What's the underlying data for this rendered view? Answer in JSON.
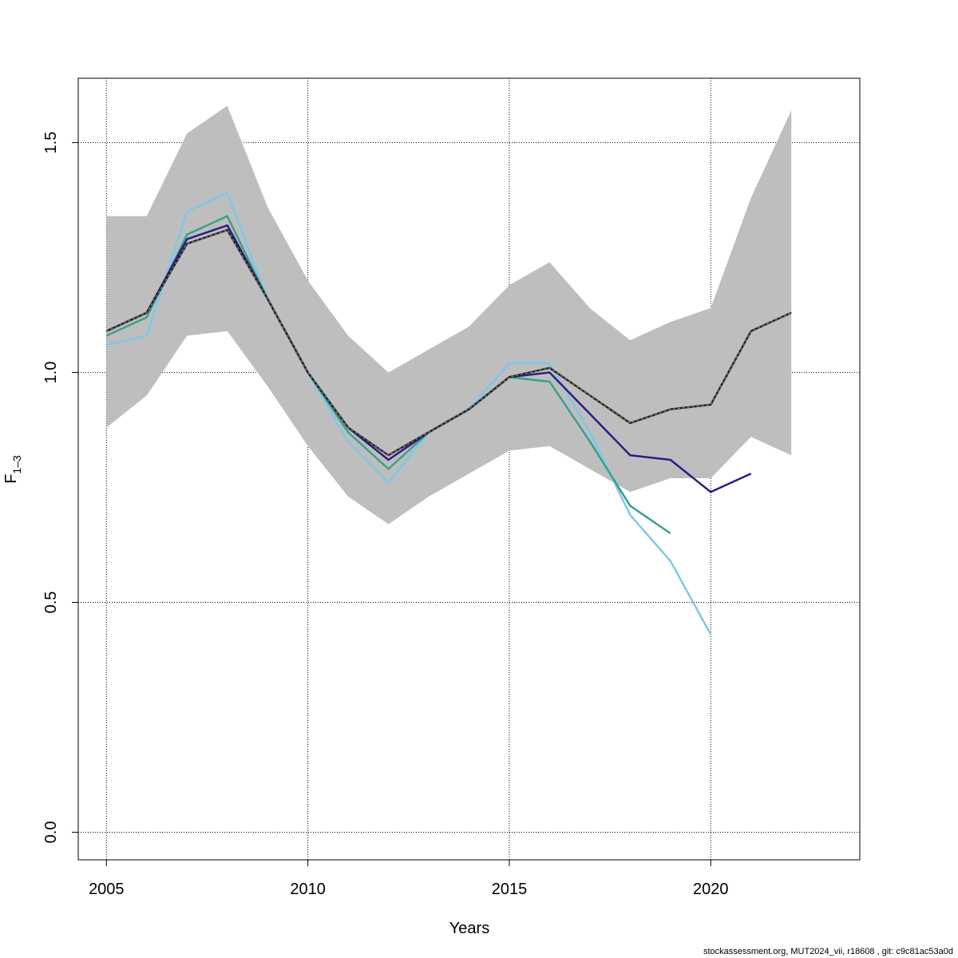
{
  "chart_data": {
    "type": "line",
    "xlabel": "Years",
    "ylabel_main": "F",
    "ylabel_sub": "1–3",
    "xlim": [
      2004.3,
      2023.7
    ],
    "ylim": [
      -0.06,
      1.64
    ],
    "x_ticks": [
      2005,
      2010,
      2015,
      2020
    ],
    "y_ticks": [
      0.0,
      0.5,
      1.0,
      1.5
    ],
    "x_tick_labels": [
      "2005",
      "2010",
      "2015",
      "2020"
    ],
    "y_tick_labels": [
      "0.0",
      "0.5",
      "1.0",
      "1.5"
    ],
    "grid": true,
    "confidence_band": {
      "color": "#bebebe",
      "x": [
        2005,
        2006,
        2007,
        2008,
        2009,
        2010,
        2011,
        2012,
        2013,
        2014,
        2015,
        2016,
        2017,
        2018,
        2019,
        2020,
        2021,
        2022
      ],
      "upper": [
        1.34,
        1.34,
        1.52,
        1.58,
        1.36,
        1.2,
        1.08,
        1.0,
        1.05,
        1.1,
        1.19,
        1.24,
        1.14,
        1.07,
        1.11,
        1.14,
        1.38,
        1.57
      ],
      "lower": [
        0.88,
        0.95,
        1.08,
        1.09,
        0.97,
        0.84,
        0.73,
        0.67,
        0.73,
        0.78,
        0.83,
        0.84,
        0.79,
        0.74,
        0.77,
        0.77,
        0.86,
        0.82
      ]
    },
    "series": [
      {
        "color": "#7ec8e8",
        "dashed": false,
        "x": [
          2005,
          2006,
          2007,
          2008,
          2009,
          2010,
          2011,
          2012,
          2013,
          2014,
          2015,
          2016,
          2017,
          2018,
          2019,
          2020
        ],
        "values": [
          1.06,
          1.08,
          1.35,
          1.39,
          1.16,
          1.0,
          0.85,
          0.76,
          0.87,
          0.92,
          1.02,
          1.02,
          0.87,
          0.69,
          0.59,
          0.43
        ]
      },
      {
        "color": "#3aa08c",
        "dashed": false,
        "x": [
          2005,
          2006,
          2007,
          2008,
          2009,
          2010,
          2011,
          2012,
          2013,
          2014,
          2015,
          2016,
          2017,
          2018,
          2019
        ],
        "values": [
          1.08,
          1.12,
          1.3,
          1.34,
          1.16,
          1.0,
          0.87,
          0.79,
          0.87,
          0.92,
          0.99,
          0.98,
          0.85,
          0.71,
          0.65
        ]
      },
      {
        "color": "#2d1c88",
        "dashed": false,
        "x": [
          2005,
          2006,
          2007,
          2008,
          2009,
          2010,
          2011,
          2012,
          2013,
          2014,
          2015,
          2016,
          2017,
          2018,
          2019,
          2020,
          2021
        ],
        "values": [
          1.09,
          1.13,
          1.29,
          1.32,
          1.16,
          1.0,
          0.88,
          0.81,
          0.87,
          0.92,
          0.99,
          1.0,
          0.91,
          0.82,
          0.81,
          0.74,
          0.78
        ]
      },
      {
        "color": "#222222",
        "dashed": true,
        "x": [
          2005,
          2006,
          2007,
          2008,
          2009,
          2010,
          2011,
          2012,
          2013,
          2014,
          2015,
          2016,
          2017,
          2018,
          2019,
          2020,
          2021,
          2022
        ],
        "values": [
          1.09,
          1.13,
          1.28,
          1.31,
          1.16,
          1.0,
          0.88,
          0.82,
          0.87,
          0.92,
          0.99,
          1.01,
          0.95,
          0.89,
          0.92,
          0.93,
          1.09,
          1.13
        ]
      }
    ]
  },
  "footer_text": "stockassessment.org, MUT2024_vii, r18608 , git: c9c81ac53a0d"
}
